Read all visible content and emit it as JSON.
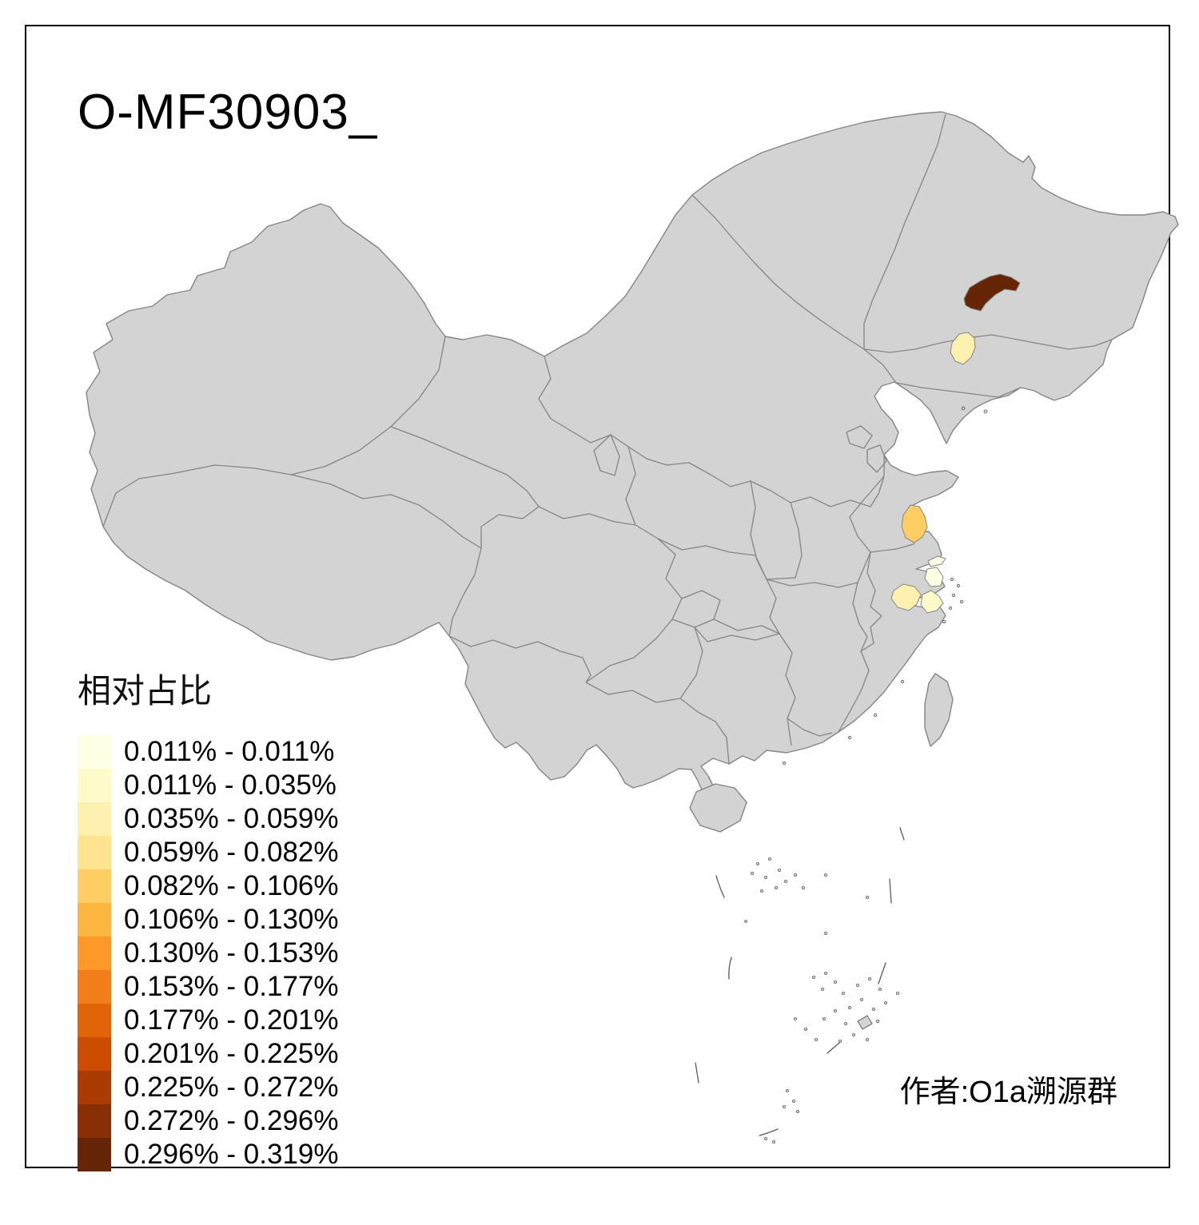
{
  "title": "O-MF30903_",
  "attribution": "作者:O1a溯源群",
  "legend": {
    "title": "相对占比",
    "classes": [
      {
        "color": "#FFFFE5",
        "label": "0.011% - 0.011%"
      },
      {
        "color": "#FFFACA",
        "label": "0.011% - 0.035%"
      },
      {
        "color": "#FEF0AE",
        "label": "0.035% - 0.059%"
      },
      {
        "color": "#FEE391",
        "label": "0.059% - 0.082%"
      },
      {
        "color": "#FECE65",
        "label": "0.082% - 0.106%"
      },
      {
        "color": "#FEB642",
        "label": "0.106% - 0.130%"
      },
      {
        "color": "#FE9929",
        "label": "0.130% - 0.153%"
      },
      {
        "color": "#F27E1B",
        "label": "0.153% - 0.177%"
      },
      {
        "color": "#E16408",
        "label": "0.177% - 0.201%"
      },
      {
        "color": "#CC4C02",
        "label": "0.201% - 0.225%"
      },
      {
        "color": "#AA3C03",
        "label": "0.225% - 0.272%"
      },
      {
        "color": "#882F05",
        "label": "0.272% - 0.296%"
      },
      {
        "color": "#662506",
        "label": "0.296% - 0.319%"
      }
    ]
  },
  "map": {
    "base_fill": "#D3D3D3",
    "border_color": "#858585",
    "background": "#FFFFFF",
    "regions": [
      {
        "id": "harbin-area",
        "color": "#662506",
        "value_range": "0.296% - 0.319%"
      },
      {
        "id": "jilin-southwest-area",
        "color": "#FEF0AE",
        "value_range": "0.035% - 0.059%"
      },
      {
        "id": "yancheng-jiangsu",
        "color": "#FECE65",
        "value_range": "0.082% - 0.106%"
      },
      {
        "id": "yangtze-mouth-strip",
        "color": "#FFFFE5",
        "value_range": "0.011% - 0.011%"
      },
      {
        "id": "shanghai",
        "color": "#FFFFE5",
        "value_range": "0.011% - 0.011%"
      },
      {
        "id": "northwest-zhejiang",
        "color": "#FEF0AE",
        "value_range": "0.035% - 0.059%"
      },
      {
        "id": "northeast-zhejiang",
        "color": "#FFFACA",
        "value_range": "0.011% - 0.035%"
      }
    ]
  },
  "chart_data": {
    "type": "choropleth-map",
    "title": "O-MF30903_",
    "legend_title": "相对占比",
    "breaks_percent": [
      0.011,
      0.011,
      0.035,
      0.059,
      0.082,
      0.106,
      0.13,
      0.153,
      0.177,
      0.201,
      0.225,
      0.272,
      0.296,
      0.319
    ],
    "highlighted_regions": [
      {
        "location": "Heilongjiang (Harbin area)",
        "value_range": "0.296% - 0.319%"
      },
      {
        "location": "Jilin southwest prefecture",
        "value_range": "0.035% - 0.059%"
      },
      {
        "location": "Jiangsu coast (Yancheng area)",
        "value_range": "0.082% - 0.106%"
      },
      {
        "location": "Shanghai / Yangtze mouth",
        "value_range": "0.011% - 0.011%"
      },
      {
        "location": "Zhejiang northwest",
        "value_range": "0.035% - 0.059%"
      },
      {
        "location": "Zhejiang northeast",
        "value_range": "0.011% - 0.035%"
      }
    ]
  }
}
